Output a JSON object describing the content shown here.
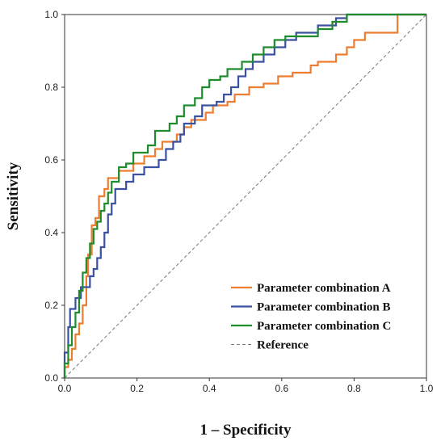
{
  "chart_data": {
    "type": "line",
    "title": "",
    "xlabel": "1 – Specificity",
    "ylabel": "Sensitivity",
    "xlim": [
      0,
      1
    ],
    "ylim": [
      0,
      1
    ],
    "x_ticks": [
      "0.0",
      "0.2",
      "0.4",
      "0.6",
      "0.8",
      "1.0"
    ],
    "y_ticks": [
      "0.0",
      "0.2",
      "0.4",
      "0.6",
      "0.8",
      "1.0"
    ],
    "grid": false,
    "legend_position": "bottom-right",
    "series": [
      {
        "name": "Parameter combination A",
        "color": "#ED7D31",
        "points": [
          [
            0,
            0
          ],
          [
            0,
            0.03
          ],
          [
            0.01,
            0.03
          ],
          [
            0.01,
            0.05
          ],
          [
            0.02,
            0.05
          ],
          [
            0.02,
            0.08
          ],
          [
            0.03,
            0.08
          ],
          [
            0.03,
            0.12
          ],
          [
            0.04,
            0.12
          ],
          [
            0.04,
            0.15
          ],
          [
            0.05,
            0.15
          ],
          [
            0.05,
            0.2
          ],
          [
            0.06,
            0.2
          ],
          [
            0.06,
            0.28
          ],
          [
            0.065,
            0.28
          ],
          [
            0.065,
            0.34
          ],
          [
            0.075,
            0.34
          ],
          [
            0.075,
            0.42
          ],
          [
            0.085,
            0.42
          ],
          [
            0.085,
            0.44
          ],
          [
            0.095,
            0.44
          ],
          [
            0.095,
            0.5
          ],
          [
            0.11,
            0.5
          ],
          [
            0.11,
            0.52
          ],
          [
            0.12,
            0.52
          ],
          [
            0.12,
            0.55
          ],
          [
            0.15,
            0.55
          ],
          [
            0.15,
            0.57
          ],
          [
            0.19,
            0.57
          ],
          [
            0.19,
            0.59
          ],
          [
            0.22,
            0.59
          ],
          [
            0.22,
            0.61
          ],
          [
            0.25,
            0.61
          ],
          [
            0.25,
            0.63
          ],
          [
            0.27,
            0.63
          ],
          [
            0.27,
            0.65
          ],
          [
            0.31,
            0.65
          ],
          [
            0.31,
            0.67
          ],
          [
            0.33,
            0.67
          ],
          [
            0.33,
            0.69
          ],
          [
            0.35,
            0.69
          ],
          [
            0.35,
            0.71
          ],
          [
            0.39,
            0.71
          ],
          [
            0.39,
            0.73
          ],
          [
            0.41,
            0.73
          ],
          [
            0.41,
            0.75
          ],
          [
            0.45,
            0.75
          ],
          [
            0.45,
            0.76
          ],
          [
            0.47,
            0.76
          ],
          [
            0.47,
            0.78
          ],
          [
            0.51,
            0.78
          ],
          [
            0.51,
            0.8
          ],
          [
            0.55,
            0.8
          ],
          [
            0.55,
            0.81
          ],
          [
            0.59,
            0.81
          ],
          [
            0.59,
            0.83
          ],
          [
            0.63,
            0.83
          ],
          [
            0.63,
            0.84
          ],
          [
            0.68,
            0.84
          ],
          [
            0.68,
            0.86
          ],
          [
            0.7,
            0.86
          ],
          [
            0.7,
            0.87
          ],
          [
            0.75,
            0.87
          ],
          [
            0.75,
            0.89
          ],
          [
            0.78,
            0.89
          ],
          [
            0.78,
            0.91
          ],
          [
            0.8,
            0.91
          ],
          [
            0.8,
            0.93
          ],
          [
            0.83,
            0.93
          ],
          [
            0.83,
            0.95
          ],
          [
            0.92,
            0.95
          ],
          [
            0.92,
            1.0
          ],
          [
            1.0,
            1.0
          ]
        ]
      },
      {
        "name": "Parameter combination B",
        "color": "#3A50A0",
        "points": [
          [
            0,
            0
          ],
          [
            0,
            0.07
          ],
          [
            0.01,
            0.07
          ],
          [
            0.01,
            0.14
          ],
          [
            0.015,
            0.14
          ],
          [
            0.015,
            0.19
          ],
          [
            0.03,
            0.19
          ],
          [
            0.03,
            0.22
          ],
          [
            0.045,
            0.22
          ],
          [
            0.045,
            0.25
          ],
          [
            0.07,
            0.25
          ],
          [
            0.07,
            0.28
          ],
          [
            0.08,
            0.28
          ],
          [
            0.08,
            0.3
          ],
          [
            0.09,
            0.3
          ],
          [
            0.09,
            0.33
          ],
          [
            0.1,
            0.33
          ],
          [
            0.1,
            0.36
          ],
          [
            0.11,
            0.36
          ],
          [
            0.11,
            0.4
          ],
          [
            0.12,
            0.4
          ],
          [
            0.12,
            0.45
          ],
          [
            0.13,
            0.45
          ],
          [
            0.13,
            0.48
          ],
          [
            0.14,
            0.48
          ],
          [
            0.14,
            0.52
          ],
          [
            0.17,
            0.52
          ],
          [
            0.17,
            0.54
          ],
          [
            0.19,
            0.54
          ],
          [
            0.19,
            0.56
          ],
          [
            0.22,
            0.56
          ],
          [
            0.22,
            0.58
          ],
          [
            0.26,
            0.58
          ],
          [
            0.26,
            0.6
          ],
          [
            0.28,
            0.6
          ],
          [
            0.28,
            0.63
          ],
          [
            0.3,
            0.63
          ],
          [
            0.3,
            0.65
          ],
          [
            0.32,
            0.65
          ],
          [
            0.32,
            0.67
          ],
          [
            0.33,
            0.67
          ],
          [
            0.33,
            0.7
          ],
          [
            0.36,
            0.7
          ],
          [
            0.36,
            0.72
          ],
          [
            0.38,
            0.72
          ],
          [
            0.38,
            0.75
          ],
          [
            0.42,
            0.75
          ],
          [
            0.42,
            0.76
          ],
          [
            0.44,
            0.76
          ],
          [
            0.44,
            0.78
          ],
          [
            0.46,
            0.78
          ],
          [
            0.46,
            0.8
          ],
          [
            0.48,
            0.8
          ],
          [
            0.48,
            0.83
          ],
          [
            0.5,
            0.83
          ],
          [
            0.5,
            0.85
          ],
          [
            0.52,
            0.85
          ],
          [
            0.52,
            0.87
          ],
          [
            0.55,
            0.87
          ],
          [
            0.55,
            0.89
          ],
          [
            0.58,
            0.89
          ],
          [
            0.58,
            0.91
          ],
          [
            0.61,
            0.91
          ],
          [
            0.61,
            0.93
          ],
          [
            0.64,
            0.93
          ],
          [
            0.64,
            0.95
          ],
          [
            0.7,
            0.95
          ],
          [
            0.7,
            0.97
          ],
          [
            0.75,
            0.97
          ],
          [
            0.75,
            0.99
          ],
          [
            0.78,
            0.99
          ],
          [
            0.78,
            1.0
          ],
          [
            1.0,
            1.0
          ]
        ]
      },
      {
        "name": "Parameter combination C",
        "color": "#1E8C2D",
        "points": [
          [
            0,
            0
          ],
          [
            0,
            0.04
          ],
          [
            0.01,
            0.04
          ],
          [
            0.01,
            0.09
          ],
          [
            0.02,
            0.09
          ],
          [
            0.02,
            0.14
          ],
          [
            0.03,
            0.14
          ],
          [
            0.03,
            0.18
          ],
          [
            0.04,
            0.18
          ],
          [
            0.04,
            0.24
          ],
          [
            0.05,
            0.24
          ],
          [
            0.05,
            0.29
          ],
          [
            0.06,
            0.29
          ],
          [
            0.06,
            0.33
          ],
          [
            0.07,
            0.33
          ],
          [
            0.07,
            0.37
          ],
          [
            0.08,
            0.37
          ],
          [
            0.08,
            0.41
          ],
          [
            0.09,
            0.41
          ],
          [
            0.09,
            0.43
          ],
          [
            0.1,
            0.43
          ],
          [
            0.1,
            0.46
          ],
          [
            0.11,
            0.46
          ],
          [
            0.11,
            0.48
          ],
          [
            0.12,
            0.48
          ],
          [
            0.12,
            0.51
          ],
          [
            0.13,
            0.51
          ],
          [
            0.13,
            0.54
          ],
          [
            0.15,
            0.54
          ],
          [
            0.15,
            0.58
          ],
          [
            0.17,
            0.58
          ],
          [
            0.17,
            0.59
          ],
          [
            0.19,
            0.59
          ],
          [
            0.19,
            0.62
          ],
          [
            0.23,
            0.62
          ],
          [
            0.23,
            0.64
          ],
          [
            0.25,
            0.64
          ],
          [
            0.25,
            0.68
          ],
          [
            0.29,
            0.68
          ],
          [
            0.29,
            0.7
          ],
          [
            0.31,
            0.7
          ],
          [
            0.31,
            0.72
          ],
          [
            0.33,
            0.72
          ],
          [
            0.33,
            0.75
          ],
          [
            0.36,
            0.75
          ],
          [
            0.36,
            0.77
          ],
          [
            0.38,
            0.77
          ],
          [
            0.38,
            0.8
          ],
          [
            0.4,
            0.8
          ],
          [
            0.4,
            0.82
          ],
          [
            0.43,
            0.82
          ],
          [
            0.43,
            0.83
          ],
          [
            0.45,
            0.83
          ],
          [
            0.45,
            0.85
          ],
          [
            0.49,
            0.85
          ],
          [
            0.49,
            0.87
          ],
          [
            0.52,
            0.87
          ],
          [
            0.52,
            0.89
          ],
          [
            0.55,
            0.89
          ],
          [
            0.55,
            0.91
          ],
          [
            0.58,
            0.91
          ],
          [
            0.58,
            0.93
          ],
          [
            0.61,
            0.93
          ],
          [
            0.61,
            0.94
          ],
          [
            0.7,
            0.94
          ],
          [
            0.7,
            0.96
          ],
          [
            0.74,
            0.96
          ],
          [
            0.74,
            0.98
          ],
          [
            0.78,
            0.98
          ],
          [
            0.78,
            1.0
          ],
          [
            1.0,
            1.0
          ]
        ]
      },
      {
        "name": "Reference",
        "color": "#777777",
        "dashed": true,
        "points": [
          [
            0,
            0
          ],
          [
            1,
            1
          ]
        ]
      }
    ]
  }
}
